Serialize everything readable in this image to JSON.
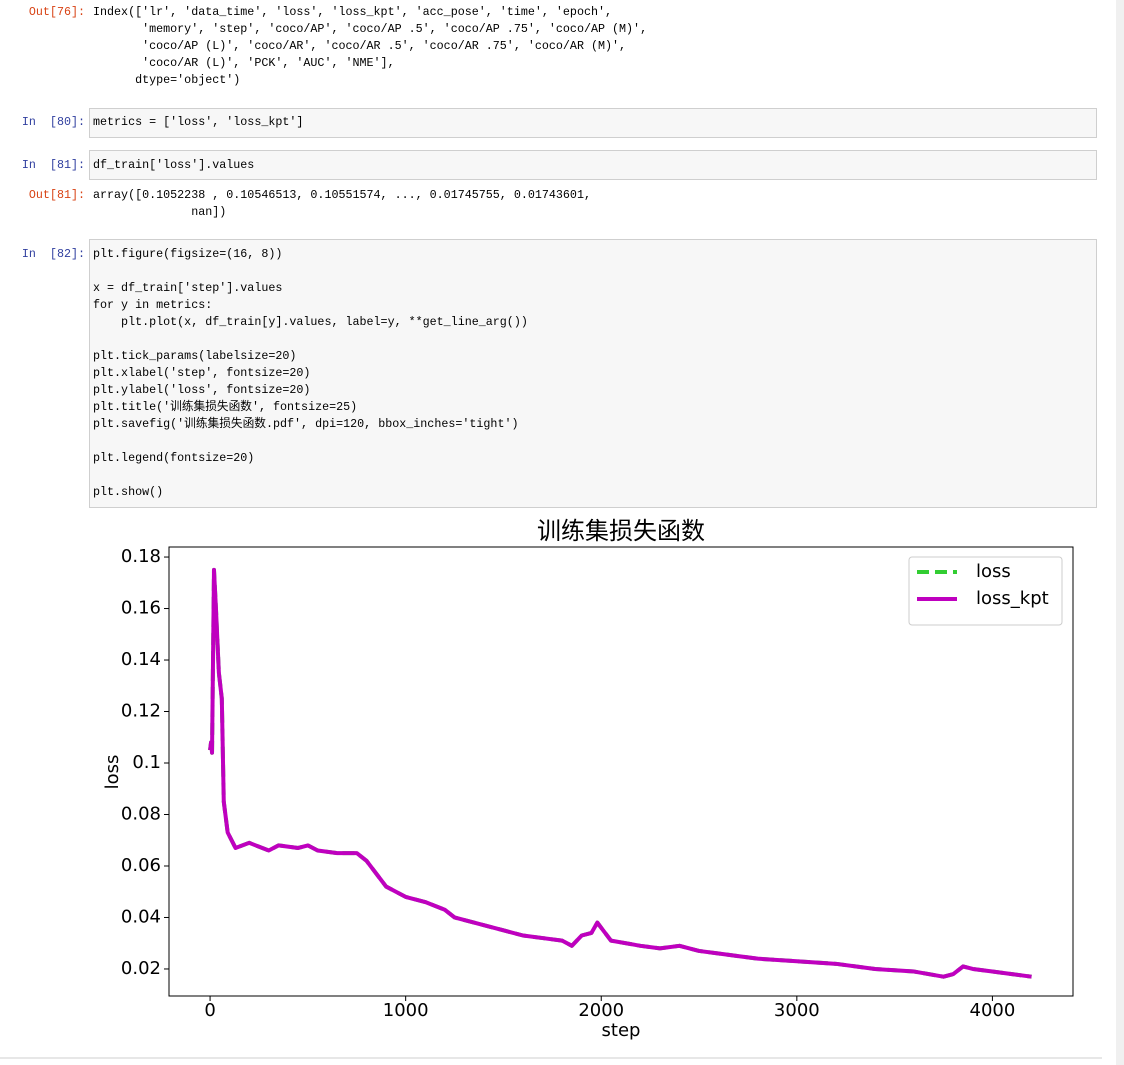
{
  "notebook": {
    "cells": [
      {
        "prompt": "Out[76]:",
        "paragraphs": [
          [
            "Index(['lr', 'data_time', 'loss', 'loss_kpt', 'acc_pose', 'time', 'epoch',",
            "       'memory', 'step', 'coco/AP', 'coco/AP .5', 'coco/AP .75', 'coco/AP (M)',",
            "       'coco/AP (L)', 'coco/AR', 'coco/AR .5', 'coco/AR .75', 'coco/AR (M)',",
            "       'coco/AR (L)', 'PCK', 'AUC', 'NME'],",
            "      dtype='object')"
          ]
        ]
      },
      {
        "prompt": "In  [80]:",
        "paragraphs": [
          [
            "metrics = ['loss', 'loss_kpt']"
          ]
        ]
      },
      {
        "prompt": "In  [81]:",
        "paragraphs": [
          [
            "df_train['loss'].values"
          ]
        ]
      },
      {
        "prompt": "Out[81]:",
        "paragraphs": [
          [
            "array([0.1052238 , 0.10546513, 0.10551574, ..., 0.01745755, 0.01743601,",
            "              nan])"
          ]
        ]
      },
      {
        "prompt": "In  [82]:",
        "paragraphs": [
          [
            "plt.figure(figsize=(16, 8))"
          ],
          [
            "x = df_train['step'].values",
            "for y in metrics:",
            "    plt.plot(x, df_train[y].values, label=y, **get_line_arg())"
          ],
          [
            "plt.tick_params(labelsize=20)",
            "plt.xlabel('step', fontsize=20)",
            "plt.ylabel('loss', fontsize=20)",
            "plt.title('训练集损失函数', fontsize=25)",
            "plt.savefig('训练集损失函数.pdf', dpi=120, bbox_inches='tight')"
          ],
          [
            "plt.legend(fontsize=20)"
          ],
          [
            "plt.show()"
          ]
        ]
      }
    ]
  },
  "chart_data": {
    "type": "line",
    "title": "训练集损失函数",
    "xlabel": "step",
    "ylabel": "loss",
    "x": [
      0,
      5,
      10,
      20,
      30,
      45,
      60,
      70,
      90,
      130,
      200,
      300,
      350,
      450,
      500,
      550,
      650,
      750,
      800,
      900,
      1000,
      1100,
      1200,
      1250,
      1400,
      1500,
      1600,
      1700,
      1800,
      1850,
      1900,
      1950,
      1980,
      2000,
      2050,
      2200,
      2300,
      2400,
      2500,
      2600,
      2700,
      2800,
      3000,
      3200,
      3400,
      3600,
      3750,
      3800,
      3850,
      3900,
      4000,
      4100,
      4200
    ],
    "series": [
      {
        "name": "loss",
        "color": "#32cd32",
        "dash": true,
        "values": [
          0.105,
          0.108,
          0.104,
          0.175,
          0.16,
          0.135,
          0.125,
          0.085,
          0.073,
          0.067,
          0.069,
          0.066,
          0.068,
          0.067,
          0.068,
          0.066,
          0.065,
          0.065,
          0.062,
          0.052,
          0.048,
          0.046,
          0.043,
          0.04,
          0.037,
          0.035,
          0.033,
          0.032,
          0.031,
          0.029,
          0.033,
          0.034,
          0.038,
          0.036,
          0.031,
          0.029,
          0.028,
          0.029,
          0.027,
          0.026,
          0.025,
          0.024,
          0.023,
          0.022,
          0.02,
          0.019,
          0.017,
          0.018,
          0.021,
          0.02,
          0.019,
          0.018,
          0.017
        ]
      },
      {
        "name": "loss_kpt",
        "color": "#bf00bf",
        "dash": false,
        "values": [
          0.105,
          0.108,
          0.104,
          0.175,
          0.16,
          0.135,
          0.125,
          0.085,
          0.073,
          0.067,
          0.069,
          0.066,
          0.068,
          0.067,
          0.068,
          0.066,
          0.065,
          0.065,
          0.062,
          0.052,
          0.048,
          0.046,
          0.043,
          0.04,
          0.037,
          0.035,
          0.033,
          0.032,
          0.031,
          0.029,
          0.033,
          0.034,
          0.038,
          0.036,
          0.031,
          0.029,
          0.028,
          0.029,
          0.027,
          0.026,
          0.025,
          0.024,
          0.023,
          0.022,
          0.02,
          0.019,
          0.017,
          0.018,
          0.021,
          0.02,
          0.019,
          0.018,
          0.017
        ]
      }
    ],
    "xlim": [
      -210,
      4412
    ],
    "ylim": [
      0.0095,
      0.1839
    ],
    "xticks": [
      0,
      1000,
      2000,
      3000,
      4000
    ],
    "yticks": [
      0.02,
      0.04,
      0.06,
      0.08,
      0.1,
      0.12,
      0.14,
      0.16,
      0.18
    ],
    "grid": false,
    "legend": "upper right"
  }
}
